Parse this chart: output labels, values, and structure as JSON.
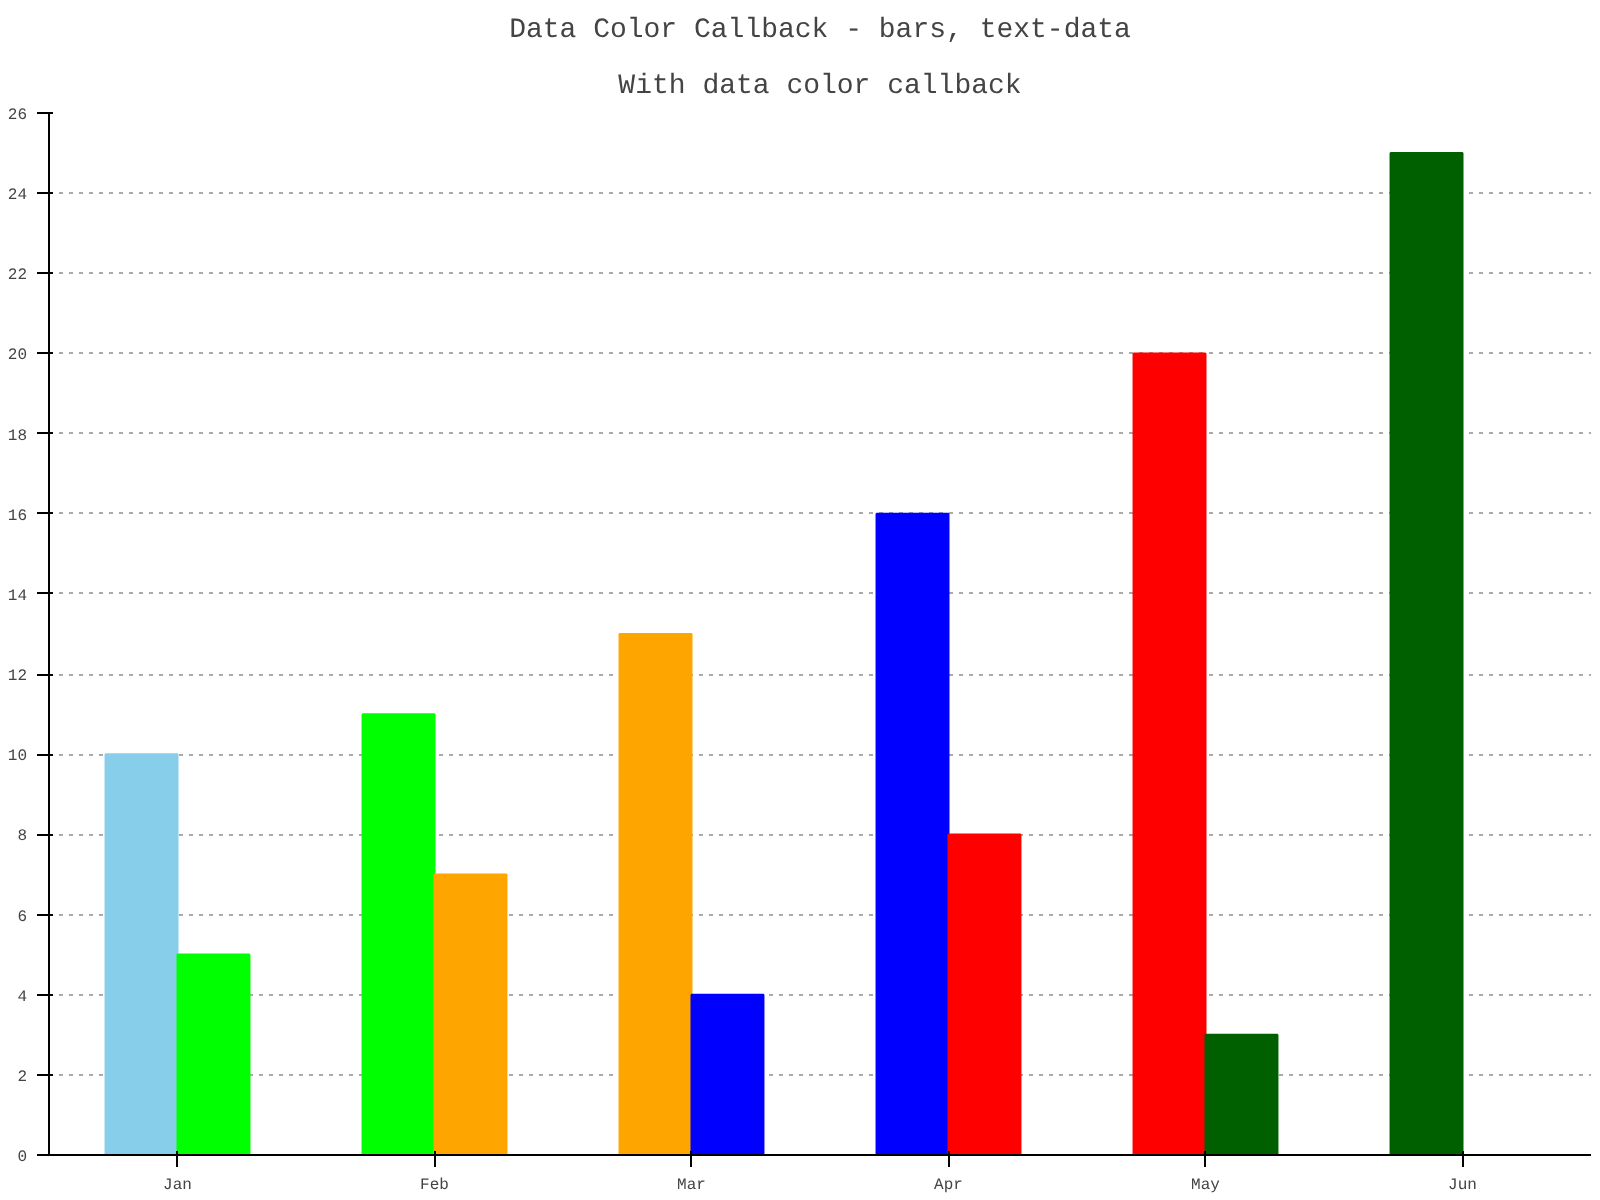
{
  "chart_data": {
    "type": "bar",
    "title": "Data Color Callback - bars, text-data",
    "subtitle": "With data color callback",
    "categories": [
      "Jan",
      "Feb",
      "Mar",
      "Apr",
      "May",
      "Jun"
    ],
    "series": [
      {
        "values": [
          10,
          11,
          13,
          16,
          20,
          25
        ],
        "colors": [
          "#87ceeb",
          "#00ff00",
          "#ffa500",
          "#0000ff",
          "#ff0000",
          "#006000"
        ]
      },
      {
        "values": [
          5,
          7,
          4,
          8,
          3,
          0
        ],
        "colors": [
          "#00ff00",
          "#ffa500",
          "#0000ff",
          "#ff0000",
          "#006000",
          "#8000c0"
        ]
      }
    ],
    "ylim": [
      0,
      26
    ],
    "yticks": [
      0,
      2,
      4,
      6,
      8,
      10,
      12,
      14,
      16,
      18,
      20,
      22,
      24,
      26
    ],
    "grid": "y"
  }
}
